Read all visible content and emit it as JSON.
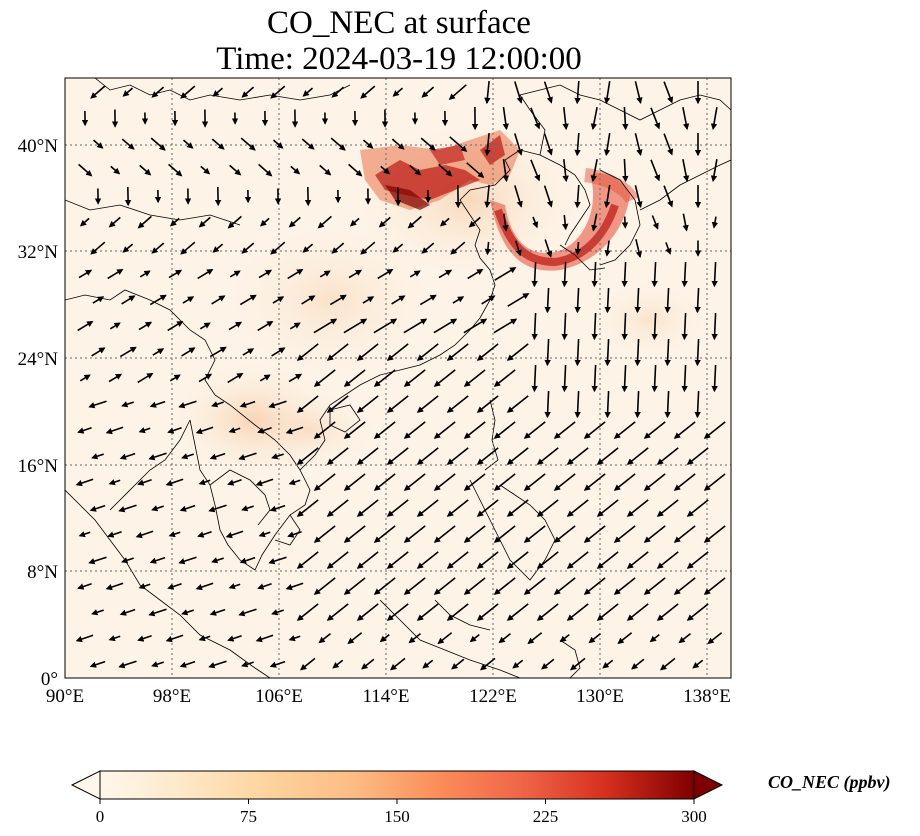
{
  "title": {
    "line1": "CO_NEC at surface",
    "line2": "Time: 2024-03-19 12:00:00"
  },
  "axes": {
    "x_ticks": [
      "90°E",
      "98°E",
      "106°E",
      "114°E",
      "122°E",
      "130°E",
      "138°E"
    ],
    "y_ticks": [
      "0°",
      "8°N",
      "16°N",
      "24°N",
      "32°N",
      "40°N"
    ],
    "lon_range": [
      90,
      139.5
    ],
    "lat_range": [
      0,
      45
    ],
    "gridlines": true
  },
  "colorbar": {
    "label": "CO_NEC (ppbv)",
    "ticks": [
      "0",
      "75",
      "150",
      "225",
      "300"
    ],
    "colormap": "OrRd",
    "range": [
      0,
      300
    ],
    "extend": "both"
  },
  "colors": {
    "background": "#fdf3e6",
    "low": "#fff7ec",
    "mid": "#fdbb84",
    "high": "#7f0000"
  }
}
